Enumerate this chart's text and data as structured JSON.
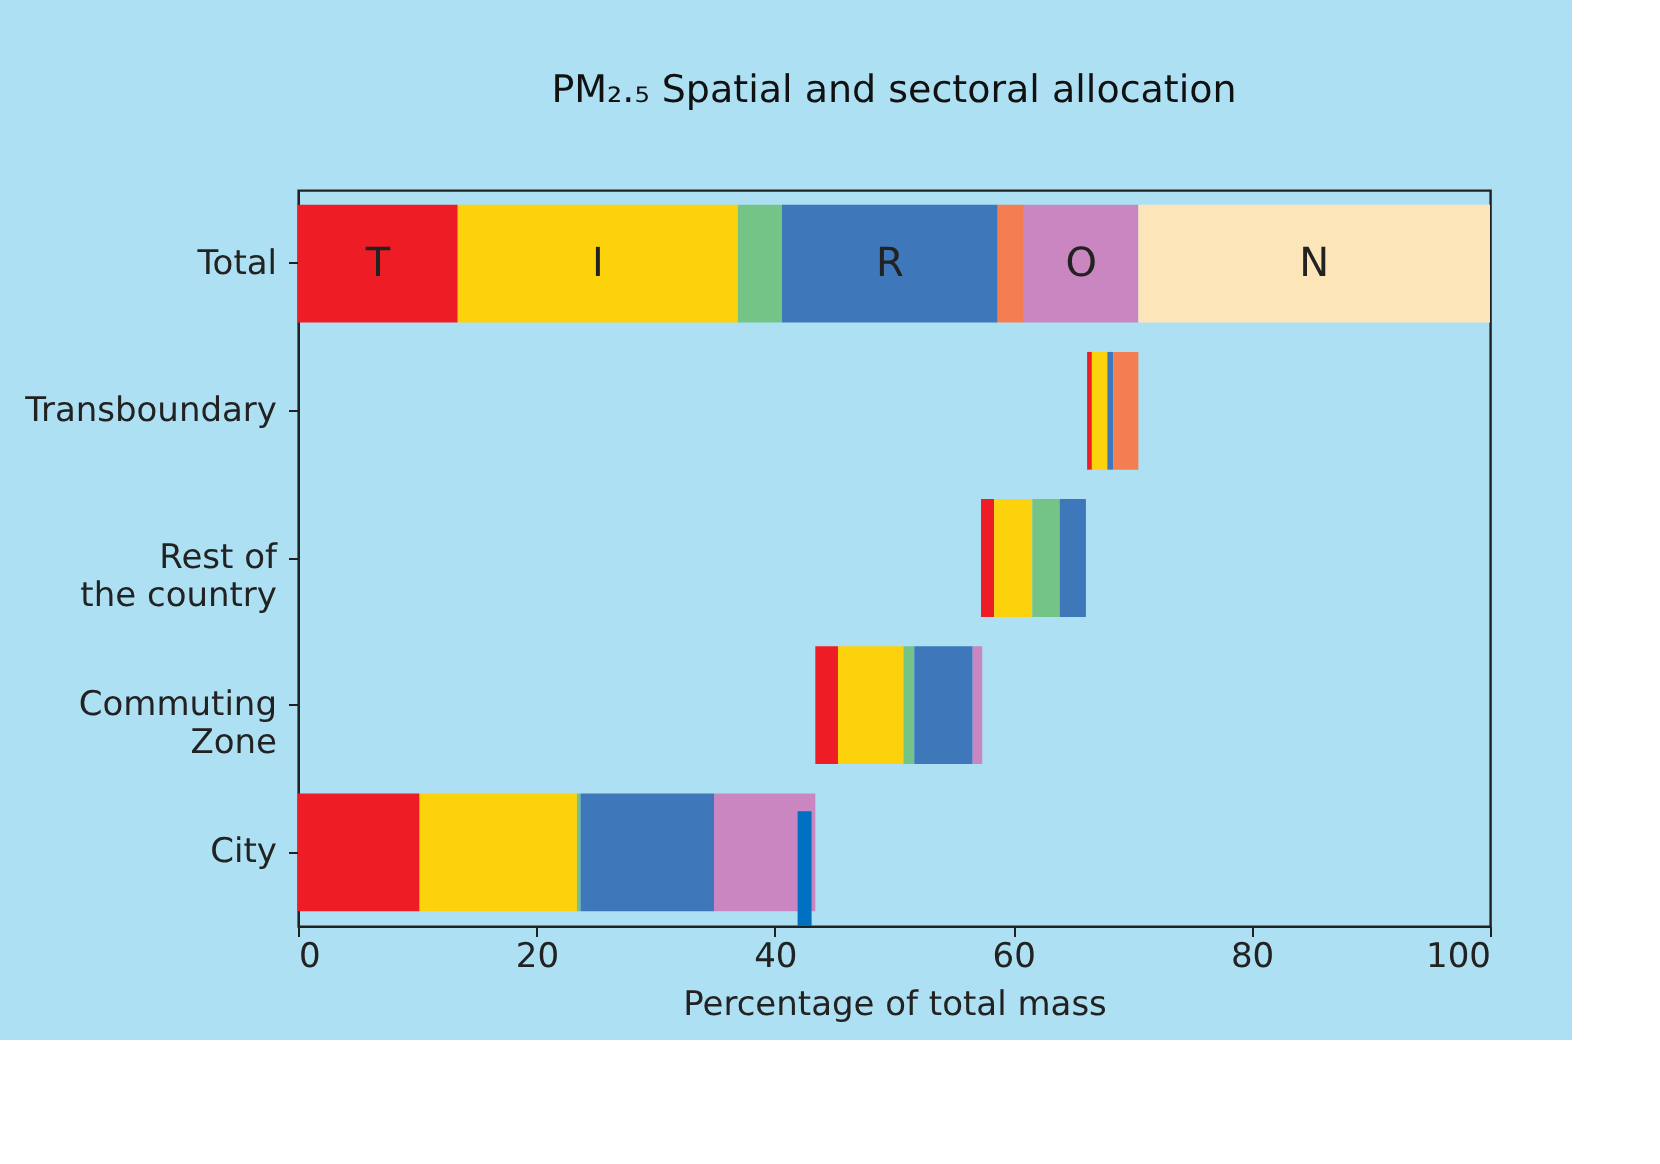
{
  "chart_data": {
    "type": "bar",
    "orientation": "horizontal",
    "title": "PM₂.₅ Spatial and sectoral allocation",
    "xlabel": "Percentage of total mass",
    "categories": [
      "Total",
      "Transboundary",
      "Rest of\nthe country",
      "Commuting\nZone",
      "City"
    ],
    "series": [
      {
        "name": "T",
        "color": "#ee1c25",
        "base": [
          0,
          66.2,
          57.3,
          43.4,
          0
        ],
        "values": [
          13.4,
          0.4,
          1.1,
          1.9,
          10.2
        ]
      },
      {
        "name": "I",
        "color": "#fcd20d",
        "base": [
          13.4,
          66.6,
          58.4,
          45.3,
          10.2
        ],
        "values": [
          23.5,
          1.3,
          3.2,
          5.5,
          13.2
        ]
      },
      {
        "color": "#74c487",
        "base": [
          36.9,
          null,
          61.6,
          50.8,
          23.4
        ],
        "values": [
          3.7,
          null,
          2.3,
          0.9,
          0.3
        ]
      },
      {
        "name": "R",
        "color": "#3f77bb",
        "base": [
          40.6,
          67.9,
          63.9,
          51.7,
          23.7
        ],
        "values": [
          18.1,
          0.5,
          2.2,
          4.9,
          11.2
        ]
      },
      {
        "color": "#f47e52",
        "base": [
          58.7,
          68.4,
          null,
          null,
          null
        ],
        "values": [
          2.2,
          2.1,
          null,
          null,
          null
        ]
      },
      {
        "name": "O",
        "color": "#c986c0",
        "base": [
          60.9,
          null,
          null,
          56.6,
          34.9
        ],
        "values": [
          9.6,
          null,
          null,
          0.8,
          8.5
        ]
      },
      {
        "name": "N",
        "color": "#fde5ba",
        "base": [
          70.5,
          null,
          null,
          null,
          null
        ],
        "values": [
          29.5,
          null,
          null,
          null,
          null
        ]
      }
    ],
    "xlim": [
      0,
      100
    ],
    "xticks": [
      0,
      20,
      40,
      60,
      80,
      100
    ],
    "ref_lines": [
      {
        "axis": "x",
        "value": 42.5,
        "color": "#0070c0"
      }
    ],
    "grid": false,
    "legend": false
  }
}
